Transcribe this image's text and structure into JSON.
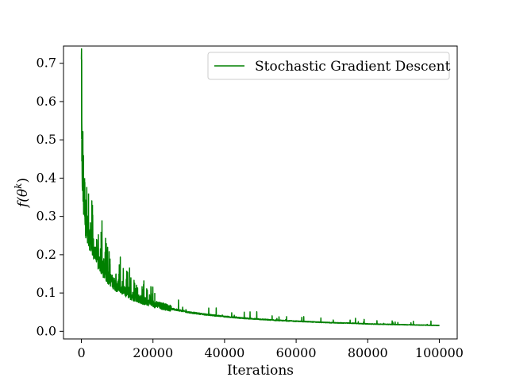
{
  "chart_data": {
    "type": "line",
    "title": "",
    "xlabel": "Iterations",
    "ylabel": "f(θ^k)",
    "ylabel_parts": {
      "base": "f(θ",
      "sup": "k",
      "end": ")"
    },
    "xlim": [
      -5000,
      105000
    ],
    "ylim": [
      -0.02,
      0.745
    ],
    "xticks": [
      0,
      20000,
      40000,
      60000,
      80000,
      100000
    ],
    "yticks": [
      0.0,
      0.1,
      0.2,
      0.3,
      0.4,
      0.5,
      0.6,
      0.7
    ],
    "grid": false,
    "legend_position": "top-right",
    "series": [
      {
        "name": "Stochastic Gradient Descent",
        "color": "#008000",
        "x": [
          0,
          100,
          200,
          300,
          500,
          800,
          1000,
          1500,
          2000,
          2500,
          3000,
          4000,
          5000,
          6000,
          7000,
          8000,
          9000,
          10000,
          12000,
          14000,
          16000,
          18000,
          20000,
          22000,
          25000,
          28000,
          30000,
          35000,
          40000,
          45000,
          50000,
          55000,
          60000,
          65000,
          70000,
          75000,
          80000,
          85000,
          90000,
          95000,
          100000
        ],
        "y": [
          0.71,
          0.45,
          0.42,
          0.38,
          0.34,
          0.31,
          0.29,
          0.265,
          0.245,
          0.23,
          0.215,
          0.19,
          0.17,
          0.155,
          0.142,
          0.131,
          0.121,
          0.113,
          0.1,
          0.09,
          0.082,
          0.075,
          0.069,
          0.064,
          0.058,
          0.053,
          0.049,
          0.043,
          0.038,
          0.034,
          0.031,
          0.028,
          0.026,
          0.024,
          0.022,
          0.021,
          0.019,
          0.018,
          0.017,
          0.016,
          0.015
        ]
      }
    ]
  }
}
